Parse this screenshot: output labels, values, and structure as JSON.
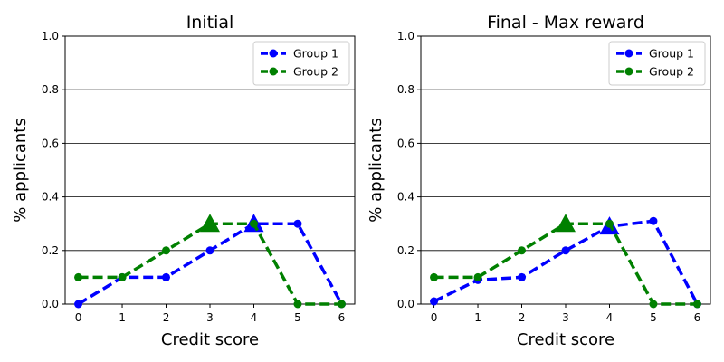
{
  "chart_data": [
    {
      "type": "line",
      "title": "Initial",
      "xlabel": "Credit score",
      "ylabel": "% applicants",
      "x": [
        0,
        1,
        2,
        3,
        4,
        5,
        6
      ],
      "xlim": [
        -0.3,
        6.3
      ],
      "ylim": [
        0,
        1.0
      ],
      "xticks": [
        "0",
        "1",
        "2",
        "3",
        "4",
        "5",
        "6"
      ],
      "yticks": [
        "0.0",
        "0.2",
        "0.4",
        "0.6",
        "0.8",
        "1.0"
      ],
      "grid": "horizontal",
      "legend": "top-right",
      "series": [
        {
          "name": "Group 1",
          "color": "#0000ff",
          "values": [
            0.0,
            0.1,
            0.1,
            0.2,
            0.3,
            0.3,
            0.0
          ],
          "marker_x": 4,
          "marker_y": 0.3
        },
        {
          "name": "Group 2",
          "color": "#008000",
          "values": [
            0.1,
            0.1,
            0.2,
            0.3,
            0.3,
            0.0,
            0.0
          ],
          "marker_x": 3,
          "marker_y": 0.3
        }
      ]
    },
    {
      "type": "line",
      "title": "Final - Max reward",
      "xlabel": "Credit score",
      "ylabel": "% applicants",
      "x": [
        0,
        1,
        2,
        3,
        4,
        5,
        6
      ],
      "xlim": [
        -0.3,
        6.3
      ],
      "ylim": [
        0,
        1.0
      ],
      "xticks": [
        "0",
        "1",
        "2",
        "3",
        "4",
        "5",
        "6"
      ],
      "yticks": [
        "0.0",
        "0.2",
        "0.4",
        "0.6",
        "0.8",
        "1.0"
      ],
      "grid": "horizontal",
      "legend": "top-right",
      "series": [
        {
          "name": "Group 1",
          "color": "#0000ff",
          "values": [
            0.01,
            0.09,
            0.1,
            0.2,
            0.29,
            0.31,
            0.0
          ],
          "marker_x": 4,
          "marker_y": 0.29
        },
        {
          "name": "Group 2",
          "color": "#008000",
          "values": [
            0.1,
            0.1,
            0.2,
            0.3,
            0.3,
            0.0,
            0.0
          ],
          "marker_x": 3,
          "marker_y": 0.3
        }
      ]
    }
  ]
}
